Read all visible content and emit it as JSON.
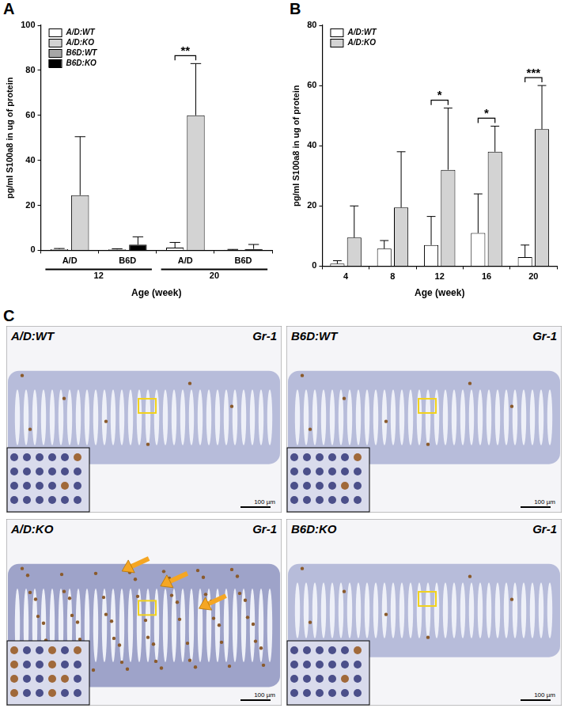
{
  "chart_data": [
    {
      "type": "bar",
      "panel": "A",
      "y_label": "pg/ml S100a8 in ug of protein",
      "x_label": "Age (week)",
      "categories": [
        "A/D",
        "B6D",
        "A/D",
        "B6D"
      ],
      "category_groups": [
        "12",
        "12",
        "20",
        "20"
      ],
      "series": [
        {
          "name": "A/D:WT",
          "color": "#ffffff",
          "values": [
            0.5,
            null,
            1.2,
            null
          ],
          "errors": [
            0.3,
            null,
            2.3,
            null
          ]
        },
        {
          "name": "A/D:KO",
          "color": "#d3d3d3",
          "values": [
            24.5,
            null,
            60,
            null
          ],
          "errors": [
            26,
            null,
            23,
            null
          ]
        },
        {
          "name": "B6D:WT",
          "color": "#a6a6a6",
          "values": [
            null,
            0.4,
            null,
            0.2
          ],
          "errors": [
            null,
            0.3,
            null,
            0.2
          ]
        },
        {
          "name": "B6D:KO",
          "color": "#000000",
          "values": [
            null,
            2.5,
            null,
            0.6
          ],
          "errors": [
            null,
            3.5,
            null,
            2
          ]
        }
      ],
      "ylim": [
        0,
        100
      ],
      "yticks": [
        0,
        20,
        40,
        60,
        80,
        100
      ],
      "grid": false,
      "legend": "upper left",
      "significance": [
        {
          "label": "**",
          "category": 2,
          "series": [
            "A/D:WT",
            "A/D:KO"
          ]
        }
      ]
    },
    {
      "type": "bar",
      "panel": "B",
      "y_label": "pg/ml S100a8 in ug of protein",
      "x_label": "Age (week)",
      "categories": [
        "4",
        "8",
        "12",
        "16",
        "20"
      ],
      "series": [
        {
          "name": "A/D:WT",
          "color": "#ffffff",
          "values": [
            0.8,
            5.8,
            7,
            11,
            3
          ],
          "errors": [
            1,
            2.7,
            9.5,
            13,
            4
          ]
        },
        {
          "name": "A/D:KO",
          "color": "#d3d3d3",
          "values": [
            9.5,
            19.5,
            32,
            38,
            45.5
          ],
          "errors": [
            10.5,
            18.5,
            20.5,
            8.5,
            14.5
          ]
        }
      ],
      "ylim": [
        0,
        80
      ],
      "yticks": [
        0,
        20,
        40,
        60,
        80
      ],
      "grid": false,
      "legend": "upper left",
      "significance": [
        {
          "label": "*",
          "category": 2,
          "series": [
            "A/D:WT",
            "A/D:KO"
          ]
        },
        {
          "label": "*",
          "category": 3,
          "series": [
            "A/D:WT",
            "A/D:KO"
          ]
        },
        {
          "label": "***",
          "category": 4,
          "series": [
            "A/D:WT",
            "A/D:KO"
          ]
        }
      ]
    }
  ],
  "panel_c": {
    "panel": "C",
    "tiles": [
      {
        "genotype": "A/D:WT",
        "stain": "Gr-1",
        "scale_bar": "100 µm"
      },
      {
        "genotype": "B6D:WT",
        "stain": "Gr-1",
        "scale_bar": "100 µm"
      },
      {
        "genotype": "A/D:KO",
        "stain": "Gr-1",
        "scale_bar": "100 µm"
      },
      {
        "genotype": "B6D:KO",
        "stain": "Gr-1",
        "scale_bar": "100 µm"
      }
    ]
  }
}
